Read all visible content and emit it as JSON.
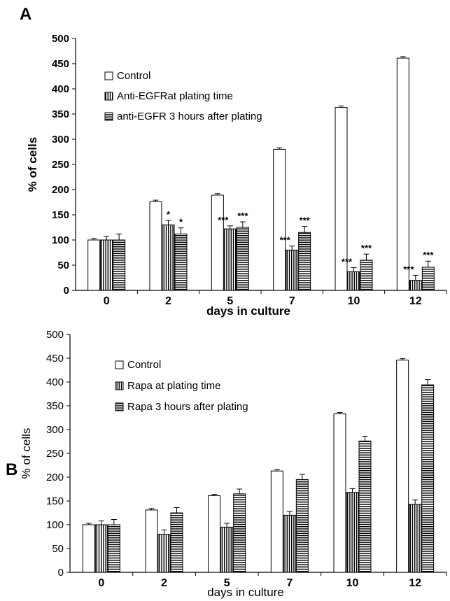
{
  "chart_data": [
    {
      "type": "bar",
      "panel_label": "A",
      "categories": [
        "0",
        "2",
        "5",
        "7",
        "10",
        "12"
      ],
      "xlabel": "days in culture",
      "ylabel": "% of cells",
      "ylim": [
        0,
        500
      ],
      "yticks": [
        "0",
        "50",
        "100",
        "150",
        "200",
        "250",
        "300",
        "350",
        "400",
        "450",
        "500"
      ],
      "grid": false,
      "legend_position": "top-left",
      "series": [
        {
          "name": "Control",
          "pattern": "open",
          "values": [
            100,
            176,
            189,
            280,
            363,
            461
          ],
          "errors": [
            3,
            3,
            3,
            3,
            3,
            3
          ],
          "significance": [
            "",
            "",
            "",
            "",
            "",
            ""
          ]
        },
        {
          "name": "Anti-EGFRat plating time",
          "pattern": "vertical-stripes",
          "values": [
            100,
            130,
            122,
            80,
            37,
            20
          ],
          "errors": [
            7,
            9,
            6,
            8,
            8,
            10
          ],
          "significance": [
            "",
            "*",
            "***",
            "***",
            "***",
            "***"
          ]
        },
        {
          "name": "anti-EGFR 3 hours after plating",
          "pattern": "horizontal-stripes",
          "values": [
            100,
            112,
            125,
            115,
            60,
            46
          ],
          "errors": [
            12,
            12,
            11,
            12,
            12,
            12
          ],
          "significance": [
            "",
            "*",
            "***",
            "***",
            "***",
            "***"
          ]
        }
      ]
    },
    {
      "type": "bar",
      "panel_label": "B",
      "categories": [
        "0",
        "2",
        "5",
        "7",
        "10",
        "12"
      ],
      "xlabel": "days in culture",
      "ylabel": "% of cells",
      "ylim": [
        0,
        500
      ],
      "yticks": [
        "0",
        "50",
        "100",
        "150",
        "200",
        "250",
        "300",
        "350",
        "400",
        "450",
        "500"
      ],
      "grid": false,
      "legend_position": "top-left",
      "series": [
        {
          "name": "Control",
          "pattern": "open",
          "values": [
            100,
            131,
            161,
            213,
            333,
            446
          ],
          "errors": [
            3,
            3,
            3,
            3,
            3,
            3
          ],
          "significance": [
            "",
            "",
            "",
            "",
            "",
            ""
          ]
        },
        {
          "name": "Rapa at plating time",
          "pattern": "vertical-stripes",
          "values": [
            100,
            80,
            95,
            120,
            168,
            143
          ],
          "errors": [
            8,
            9,
            8,
            8,
            8,
            9
          ],
          "significance": [
            "",
            "",
            "***",
            "***",
            "***",
            "***"
          ]
        },
        {
          "name": "Rapa 3 hours after plating",
          "pattern": "horizontal-stripes",
          "values": [
            100,
            125,
            165,
            195,
            276,
            394
          ],
          "errors": [
            11,
            11,
            10,
            11,
            10,
            11
          ],
          "significance": [
            "",
            "",
            "",
            "",
            "",
            ""
          ]
        }
      ]
    }
  ]
}
